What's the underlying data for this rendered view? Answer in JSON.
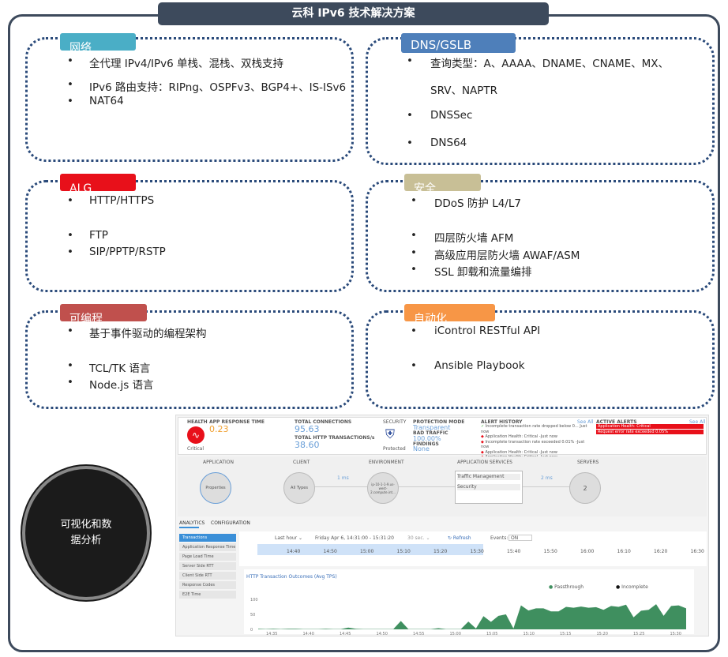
{
  "title": "云科 IPv6 技术解决方案",
  "sections": [
    {
      "label": "网络",
      "color": "#4aaec6",
      "items": [
        "全代理 IPv4/IPv6 单栈、混栈、双栈支持",
        "IPv6 路由支持：RIPng、OSPFv3、BGP4+、IS-ISv6",
        "NAT64"
      ]
    },
    {
      "label": "DNS/GSLB",
      "color": "#4e7fba",
      "items": [
        "查询类型：A、AAAA、DNAME、CNAME、MX、",
        "SRV、NAPTR",
        "DNSSec",
        "DNS64"
      ]
    },
    {
      "label": "ALG",
      "color": "#e8101a",
      "items": [
        "HTTP/HTTPS",
        "FTP",
        "SIP/PPTP/RSTP"
      ]
    },
    {
      "label": "安全",
      "color": "#c8bf96",
      "items": [
        "DDoS 防护 L4/L7",
        "四层防火墙 AFM",
        "高级应用层防火墙 AWAF/ASM",
        "SSL 卸载和流量编排"
      ]
    },
    {
      "label": "可编程",
      "color": "#c0504d",
      "items": [
        "基于事件驱动的编程架构",
        "TCL/TK 语言",
        "Node.js 语言"
      ]
    },
    {
      "label": "自动化",
      "color": "#f79646",
      "items": [
        "iControl RESTful API",
        "Ansible Playbook"
      ]
    }
  ],
  "circle_text": "可视化和数据分析",
  "dashboard": {
    "health": {
      "label": "HEALTH",
      "status": "Critical"
    },
    "app_response": {
      "label": "APP RESPONSE TIME",
      "value": "0.23"
    },
    "connections": {
      "label": "TOTAL CONNECTIONS",
      "value": "95.63",
      "tx_label": "TOTAL HTTP TRANSACTIONS/s",
      "tx_value": "38.60"
    },
    "security": {
      "label": "SECURITY",
      "status": "Protected"
    },
    "protection": {
      "mode_label": "PROTECTION MODE",
      "mode": "Transparent",
      "bad_label": "BAD TRAFFIC",
      "bad": "100.00%",
      "findings_label": "FINDINGS",
      "findings": "None"
    },
    "alert_history": {
      "label": "ALERT HISTORY",
      "see_all": "See All",
      "items": [
        "Incomplete transaction rate dropped below 0... Just now",
        "Application Health: Critical -Just now",
        "Incomplete transaction rate exceeded 0.01% -Just now",
        "Application Health: Critical -Just now",
        "Application Health: Critical -Just now"
      ]
    },
    "active_alerts": {
      "label": "ACTIVE ALERTS",
      "see_all": "See All",
      "items": [
        "Application Health: Critical",
        "Request error rate exceeded 0.05%"
      ]
    },
    "topology": {
      "application": "APPLICATION",
      "client": "CLIENT",
      "environment": "ENVIRONMENT",
      "services": "APPLICATION SERVICES",
      "servers": "SERVERS",
      "properties": "Properties",
      "all_types": "All Types",
      "env_node": "ip-10-1-1-9.us-west-2.compute.int...",
      "lat1": "1 ms",
      "lat2": "2 ms",
      "svc": [
        "Traffic Management",
        "Security"
      ],
      "server_count": "2"
    },
    "tabs": [
      "ANALYTICS",
      "CONFIGURATION"
    ],
    "nav": [
      "Transactions",
      "Application Response Time",
      "Page Load Time",
      "Server Side RTT",
      "Client Side RTT",
      "Response Codes",
      "E2E Time"
    ],
    "toolbar": {
      "range": "Last hour ⌄",
      "dates": "Friday Apr 6, 14:31:00 - 15:31:20",
      "interval": "30 sec. ⌄",
      "refresh": "↻ Refresh",
      "events": "Events:",
      "events_state": "ON"
    },
    "timeline": [
      "14:40",
      "14:50",
      "15:00",
      "15:10",
      "15:20",
      "15:30",
      "15:40",
      "15:50",
      "16:00",
      "16:10",
      "16:20",
      "16:30"
    ]
  },
  "chart_data": {
    "type": "area",
    "title": "HTTP Transaction Outcomes (Avg TPS)",
    "legend": [
      "Passthrough",
      "Incomplete"
    ],
    "colors": {
      "Passthrough": "#3f8f5f",
      "Incomplete": "#111111"
    },
    "ylim": [
      0,
      100
    ],
    "yticks": [
      "100",
      "50",
      "0"
    ],
    "xticks": [
      "14:35",
      "14:40",
      "14:45",
      "14:50",
      "14:55",
      "15:00",
      "15:05",
      "15:10",
      "15:15",
      "15:20",
      "15:25",
      "15:30"
    ],
    "values": [
      2,
      1,
      2,
      1,
      2,
      2,
      1,
      1,
      1,
      2,
      1,
      1,
      6,
      2,
      1,
      1,
      1,
      1,
      1,
      28,
      1,
      1,
      1,
      1,
      4,
      1,
      1,
      1,
      26,
      3,
      44,
      25,
      45,
      50,
      3,
      80,
      63,
      70,
      70,
      60,
      60,
      75,
      72,
      76,
      72,
      74,
      65,
      78,
      75,
      82,
      40,
      62,
      65,
      84,
      45,
      78,
      80,
      70
    ]
  }
}
